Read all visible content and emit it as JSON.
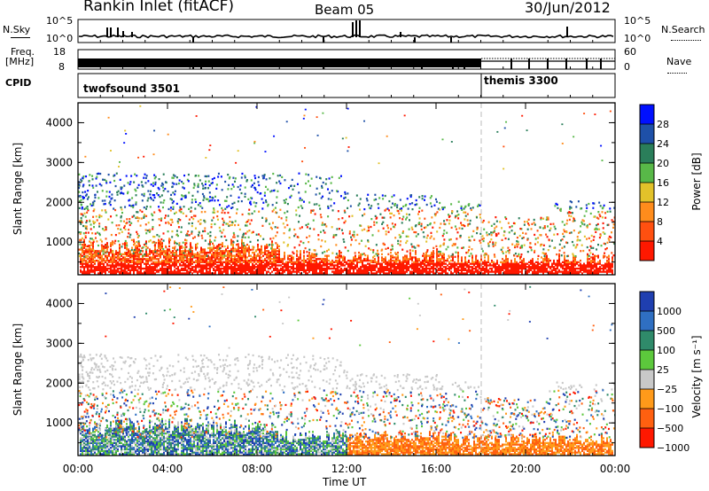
{
  "header": {
    "station": "Rankin Inlet (fitACF)",
    "beam": "Beam 05",
    "date": "30/Jun/2012"
  },
  "top_panels": {
    "nsky_label": "N.Sky",
    "nsky_ticks": [
      "10^5",
      "10^0"
    ],
    "nsearch_label": "N.Search",
    "nsearch_ticks": [
      "10^5",
      "10^0"
    ],
    "freq_label": "Freq.",
    "freq_unit": "[MHz]",
    "freq_ticks": [
      "18",
      "8"
    ],
    "nave_label": "Nave",
    "nave_ticks": [
      "60",
      "0"
    ],
    "cpid_label": "CPID",
    "cpid_modes": [
      {
        "name": "twofsound 3501",
        "start_hour": 0
      },
      {
        "name": "themis 3300",
        "start_hour": 18.0
      }
    ]
  },
  "chart_data": [
    {
      "type": "heatmap",
      "name": "power",
      "ylabel": "Slant Range [km]",
      "yticks": [
        "1000",
        "2000",
        "3000",
        "4000"
      ],
      "ylim": [
        180,
        4500
      ],
      "xlim": [
        0,
        24
      ],
      "colorbar_label": "Power [dB]",
      "colorbar_ticks": [
        "4",
        "8",
        "12",
        "16",
        "20",
        "24",
        "28"
      ],
      "colors": [
        "#0010ff",
        "#1e50a8",
        "#2a7e5a",
        "#58b848",
        "#e2c22a",
        "#ff8c1c",
        "#ff5010",
        "#ff1800"
      ]
    },
    {
      "type": "heatmap",
      "name": "velocity",
      "ylabel": "Slant Range [km]",
      "yticks": [
        "1000",
        "2000",
        "3000",
        "4000"
      ],
      "ylim": [
        180,
        4500
      ],
      "xlim": [
        0,
        24
      ],
      "colorbar_label": "Velocity [m s⁻¹]",
      "colorbar_ticks": [
        "1000",
        "500",
        "100",
        "25",
        "−25",
        "−100",
        "−500",
        "−1000"
      ],
      "colors": [
        "#1f3fb0",
        "#2f6fc2",
        "#2f8a6a",
        "#5cc83c",
        "#c8c8c8",
        "#ff9a1a",
        "#ff6010",
        "#ff1800"
      ]
    }
  ],
  "xaxis": {
    "ticks": [
      "00:00",
      "04:00",
      "08:00",
      "12:00",
      "16:00",
      "20:00",
      "00:00"
    ],
    "label": "Time UT"
  }
}
